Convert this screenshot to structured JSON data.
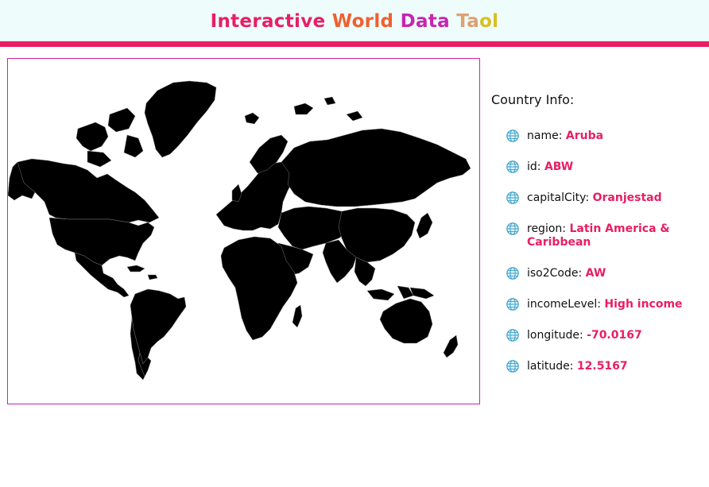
{
  "header": {
    "title_words": [
      "Interactive",
      "World",
      "Data",
      "Ta",
      "ol"
    ],
    "title_colors": [
      "#e91e63",
      "#f06030",
      "#c724b1",
      "#e0a070",
      "#d8c020"
    ],
    "accent_bar_color": "#e91e63",
    "background_color": "#eefcfc"
  },
  "map": {
    "border_color": "#c724b1",
    "fill_color": "#000000"
  },
  "info": {
    "heading": "Country Info:",
    "icon": "globe-icon",
    "items": [
      {
        "key": "name",
        "value": "Aruba"
      },
      {
        "key": "id",
        "value": "ABW"
      },
      {
        "key": "capitalCity",
        "value": "Oranjestad"
      },
      {
        "key": "region",
        "value": "Latin America & Caribbean"
      },
      {
        "key": "iso2Code",
        "value": "AW"
      },
      {
        "key": "incomeLevel",
        "value": "High income"
      },
      {
        "key": "longitude",
        "value": "-70.0167"
      },
      {
        "key": "latitude",
        "value": "12.5167"
      }
    ]
  }
}
